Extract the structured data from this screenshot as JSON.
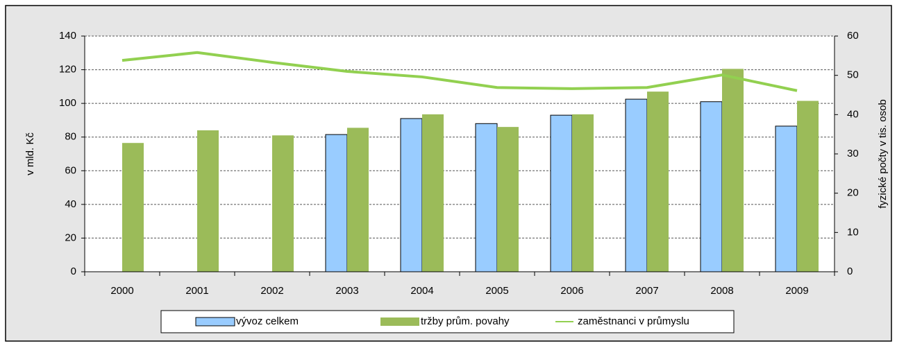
{
  "chart_data": {
    "type": "bar",
    "categories": [
      "2000",
      "2001",
      "2002",
      "2003",
      "2004",
      "2005",
      "2006",
      "2007",
      "2008",
      "2009"
    ],
    "series": [
      {
        "name": "vývoz celkem",
        "color": "#99ccff",
        "type": "bar",
        "values": [
          null,
          null,
          null,
          81.5,
          91,
          88,
          93,
          102.5,
          101,
          86.5
        ]
      },
      {
        "name": "tržby prům. povahy",
        "color": "#9bbb59",
        "type": "bar",
        "values": [
          76.5,
          84,
          81,
          85.5,
          93.5,
          86,
          93.5,
          107,
          120.5,
          101.5
        ]
      },
      {
        "name": "zaměstnanci v průmyslu",
        "color": "#92d050",
        "type": "line",
        "axis": "y2",
        "values": [
          53.8,
          55.8,
          53.3,
          51.0,
          49.6,
          46.9,
          46.6,
          46.9,
          50.1,
          46.1
        ]
      }
    ],
    "ylabel": "v mld. Kč",
    "y2label": "fyzické počty v tis. osob",
    "ylim": [
      0,
      140
    ],
    "yticks": [
      0,
      20,
      40,
      60,
      80,
      100,
      120,
      140
    ],
    "y2lim": [
      0,
      60
    ],
    "y2ticks": [
      0,
      10,
      20,
      30,
      40,
      50,
      60
    ],
    "grid": true,
    "legend": "bottom"
  }
}
